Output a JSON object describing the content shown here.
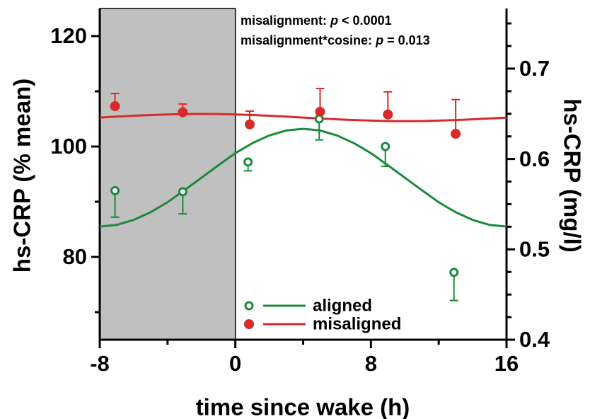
{
  "chart_data": {
    "type": "scatter",
    "xlabel": "time since wake (h)",
    "ylabel": "hs-CRP (% mean)",
    "y2label": "hs-CRP (mg/l)",
    "xlim": [
      -8,
      16
    ],
    "xticks": [
      -8,
      0,
      8,
      16
    ],
    "xminor": [
      -4,
      4,
      12
    ],
    "ylim": [
      65,
      125
    ],
    "yticks": [
      80,
      100,
      120
    ],
    "yminor": [
      70,
      90,
      110
    ],
    "y2lim": [
      0.4,
      0.7665
    ],
    "y2ticks": [
      0.4,
      0.5,
      0.6,
      0.7
    ],
    "y2minor": [
      0.425,
      0.45,
      0.475,
      0.525,
      0.55,
      0.575,
      0.625,
      0.65,
      0.675,
      0.725,
      0.75
    ],
    "shade_x": [
      -8,
      0
    ],
    "shade_color": "#c0c0c0",
    "legend": "lower left",
    "annotations": [
      [
        "misalignment: ",
        "p",
        " < 0.0001"
      ],
      [
        "misalignment*cosine: ",
        "p",
        " = 0.013"
      ]
    ],
    "fit_x": [
      -8,
      -7,
      -6,
      -5,
      -4,
      -3,
      -2,
      -1,
      0,
      1,
      2,
      3,
      4,
      5,
      6,
      7,
      8,
      9,
      10,
      11,
      12,
      13,
      14,
      15,
      16
    ],
    "series": [
      {
        "name": "aligned",
        "color": "#1a8a3c",
        "marker": "open",
        "error_direction": "down",
        "x": [
          -7.1,
          -3.1,
          0.75,
          4.95,
          8.85,
          12.9
        ],
        "values": [
          92.0,
          91.8,
          97.2,
          105.0,
          100.0,
          77.2
        ],
        "errors": [
          4.8,
          4.0,
          1.6,
          3.8,
          3.6,
          5.1
        ],
        "fit": [
          85.5,
          85.8,
          86.7,
          88.1,
          89.9,
          92.1,
          94.35,
          96.6,
          98.8,
          100.6,
          102.0,
          102.9,
          103.2,
          102.9,
          102.0,
          100.6,
          98.8,
          96.6,
          94.35,
          92.1,
          89.9,
          88.1,
          86.7,
          85.8,
          85.5
        ]
      },
      {
        "name": "misaligned",
        "color": "#d92a2a",
        "marker": "filled",
        "error_direction": "up",
        "x": [
          -7.1,
          -3.1,
          0.85,
          5.0,
          9.0,
          13.0
        ],
        "values": [
          107.3,
          106.2,
          104.0,
          106.3,
          105.8,
          102.3
        ],
        "errors": [
          2.3,
          1.5,
          2.4,
          4.2,
          4.1,
          6.2
        ],
        "fit": [
          105.25,
          105.42,
          105.58,
          105.71,
          105.81,
          105.88,
          105.9,
          105.88,
          105.81,
          105.71,
          105.58,
          105.42,
          105.25,
          105.08,
          104.92,
          104.79,
          104.69,
          104.62,
          104.6,
          104.62,
          104.69,
          104.79,
          104.92,
          105.08,
          105.25
        ]
      }
    ]
  }
}
